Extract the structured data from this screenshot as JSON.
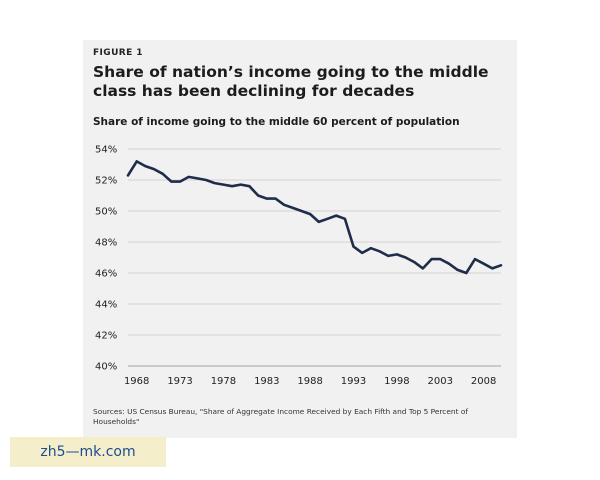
{
  "figure": {
    "label": "FIGURE 1",
    "title": "Share of nation’s income going to the middle class has been declining for decades",
    "source": "Sources: US Census Bureau, \"Share of Aggregate Income Received by Each Fifth and Top 5 Percent of Households\""
  },
  "watermark": {
    "text": "zh5—mk.com"
  },
  "chart_data": {
    "type": "line",
    "title": "Share of income going to the middle 60 percent of population",
    "xlabel": "",
    "ylabel": "",
    "xlim": [
      1967,
      2010
    ],
    "ylim": [
      40,
      54
    ],
    "x_ticks": [
      1968,
      1973,
      1978,
      1983,
      1988,
      1993,
      1998,
      2003,
      2008
    ],
    "y_ticks": [
      "40%",
      "42%",
      "44%",
      "46%",
      "48%",
      "50%",
      "52%",
      "54%"
    ],
    "y_tick_values": [
      40,
      42,
      44,
      46,
      48,
      50,
      52,
      54
    ],
    "grid": true,
    "color": "#1f2d4a",
    "series": [
      {
        "x": [
          1967,
          1968,
          1969,
          1970,
          1971,
          1972,
          1973,
          1974,
          1975,
          1976,
          1977,
          1978,
          1979,
          1980,
          1981,
          1982,
          1983,
          1984,
          1985,
          1986,
          1987,
          1988,
          1989,
          1990,
          1991,
          1992,
          1993,
          1994,
          1995,
          1996,
          1997,
          1998,
          1999,
          2000,
          2001,
          2002,
          2003,
          2004,
          2005,
          2006,
          2007,
          2008,
          2009,
          2010
        ],
        "values": [
          52.3,
          53.2,
          52.9,
          52.7,
          52.4,
          51.9,
          51.9,
          52.2,
          52.1,
          52.0,
          51.8,
          51.7,
          51.6,
          51.7,
          51.6,
          51.0,
          50.8,
          50.8,
          50.4,
          50.2,
          50.0,
          49.8,
          49.3,
          49.5,
          49.7,
          49.5,
          47.7,
          47.3,
          47.6,
          47.4,
          47.1,
          47.2,
          47.0,
          46.7,
          46.3,
          46.9,
          46.9,
          46.6,
          46.2,
          46.0,
          46.9,
          46.6,
          46.3,
          46.5
        ]
      }
    ]
  }
}
